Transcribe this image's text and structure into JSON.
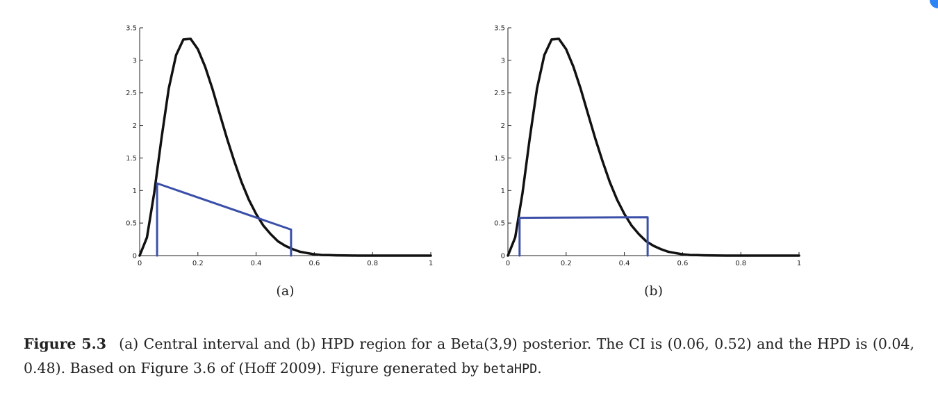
{
  "chart_data": [
    {
      "type": "line",
      "panel_label": "(a)",
      "xlim": [
        0,
        1
      ],
      "ylim": [
        0,
        3.5
      ],
      "x_ticks": [
        "0",
        "0.2",
        "0.4",
        "0.6",
        "0.8",
        "1"
      ],
      "y_ticks": [
        "0",
        "0.5",
        "1",
        "1.5",
        "2",
        "2.5",
        "3",
        "3.5"
      ],
      "series": [
        {
          "color": "#111111",
          "x": [
            0,
            0.025,
            0.05,
            0.075,
            0.1,
            0.125,
            0.15,
            0.175,
            0.2,
            0.225,
            0.25,
            0.275,
            0.3,
            0.325,
            0.35,
            0.375,
            0.4,
            0.425,
            0.45,
            0.475,
            0.5,
            0.525,
            0.55,
            0.575,
            0.6,
            0.625,
            0.65,
            0.675,
            0.7,
            0.725,
            0.75,
            0.775,
            0.8,
            0.825,
            0.85,
            0.875,
            0.9,
            0.925,
            0.95,
            0.975,
            1
          ],
          "y": [
            0,
            0.28,
            0.96,
            1.8,
            2.57,
            3.08,
            3.32,
            3.33,
            3.17,
            2.9,
            2.56,
            2.18,
            1.8,
            1.45,
            1.13,
            0.86,
            0.64,
            0.46,
            0.33,
            0.22,
            0.15,
            0.1,
            0.06,
            0.04,
            0.02,
            0.01,
            0.008,
            0.004,
            0.002,
            0.001,
            0,
            0,
            0,
            0,
            0,
            0,
            0,
            0,
            0,
            0,
            0
          ]
        },
        {
          "color": "#3b4fa8",
          "x": [
            0.06,
            0.06,
            0.52,
            0.52
          ],
          "y": [
            0,
            1.11,
            0.4,
            0
          ]
        }
      ]
    },
    {
      "type": "line",
      "panel_label": "(b)",
      "xlim": [
        0,
        1
      ],
      "ylim": [
        0,
        3.5
      ],
      "x_ticks": [
        "0",
        "0.2",
        "0.4",
        "0.6",
        "0.8",
        "1"
      ],
      "y_ticks": [
        "0",
        "0.5",
        "1",
        "1.5",
        "2",
        "2.5",
        "3",
        "3.5"
      ],
      "series": [
        {
          "color": "#111111",
          "x": [
            0,
            0.025,
            0.05,
            0.075,
            0.1,
            0.125,
            0.15,
            0.175,
            0.2,
            0.225,
            0.25,
            0.275,
            0.3,
            0.325,
            0.35,
            0.375,
            0.4,
            0.425,
            0.45,
            0.475,
            0.5,
            0.525,
            0.55,
            0.575,
            0.6,
            0.625,
            0.65,
            0.675,
            0.7,
            0.725,
            0.75,
            0.775,
            0.8,
            0.825,
            0.85,
            0.875,
            0.9,
            0.925,
            0.95,
            0.975,
            1
          ],
          "y": [
            0,
            0.28,
            0.96,
            1.8,
            2.57,
            3.08,
            3.32,
            3.33,
            3.17,
            2.9,
            2.56,
            2.18,
            1.8,
            1.45,
            1.13,
            0.86,
            0.64,
            0.46,
            0.33,
            0.22,
            0.15,
            0.1,
            0.06,
            0.04,
            0.02,
            0.01,
            0.008,
            0.004,
            0.002,
            0.001,
            0,
            0,
            0,
            0,
            0,
            0,
            0,
            0,
            0,
            0,
            0
          ]
        },
        {
          "color": "#3b4fa8",
          "x": [
            0.04,
            0.04,
            0.48,
            0.48
          ],
          "y": [
            0,
            0.58,
            0.59,
            0
          ]
        }
      ]
    }
  ],
  "caption": {
    "figure_label": "Figure 5.3",
    "text": "(a) Central interval and (b) HPD region for a Beta(3,9) posterior. The CI is (0.06, 0.52) and the HPD is (0.04, 0.48). Based on Figure 3.6 of (Hoff 2009). Figure generated by ",
    "code": "betaHPD",
    "end": "."
  },
  "colors": {
    "curve": "#111111",
    "interval": "#3b4fa8",
    "badge": "#2d84f5"
  }
}
